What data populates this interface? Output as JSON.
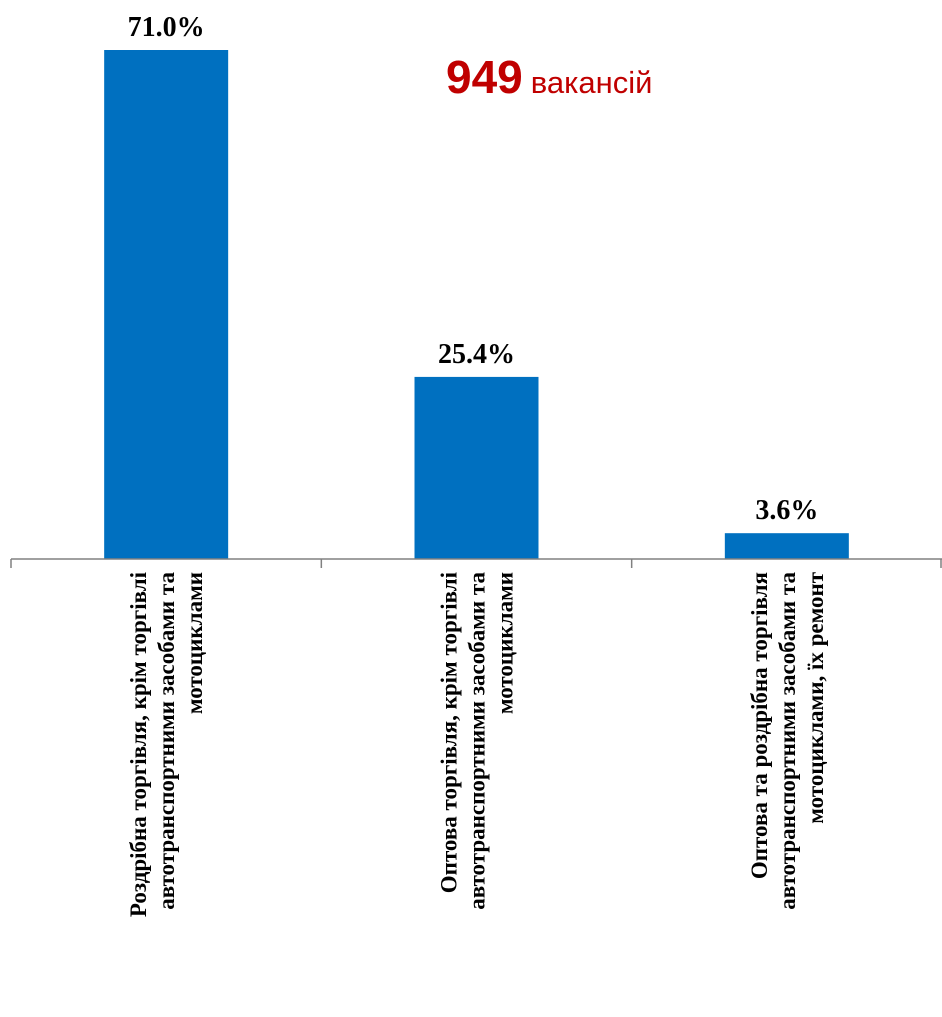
{
  "chart_data": {
    "type": "bar",
    "categories": [
      [
        "Роздрібна торгівля, крім торгівлі",
        "автотранспортними засобами та",
        "мотоциклами"
      ],
      [
        "Оптова торгівля, крім торгівлі",
        "автотранспортними засобами та",
        "мотоциклами"
      ],
      [
        "Оптова та роздрібна торгівля",
        "автотранспортними засобами та",
        "мотоциклами, їх ремонт"
      ]
    ],
    "values": [
      71.0,
      25.4,
      3.6
    ],
    "value_labels": [
      "71.0%",
      "25.4%",
      "3.6%"
    ],
    "ylim": [
      0,
      71.0
    ],
    "grid": false,
    "legend": "none",
    "bar_color": "#0070c0",
    "axis_color": "#808080"
  },
  "annotation": {
    "number": "949",
    "text": "вакансій",
    "color": "#c00000"
  }
}
